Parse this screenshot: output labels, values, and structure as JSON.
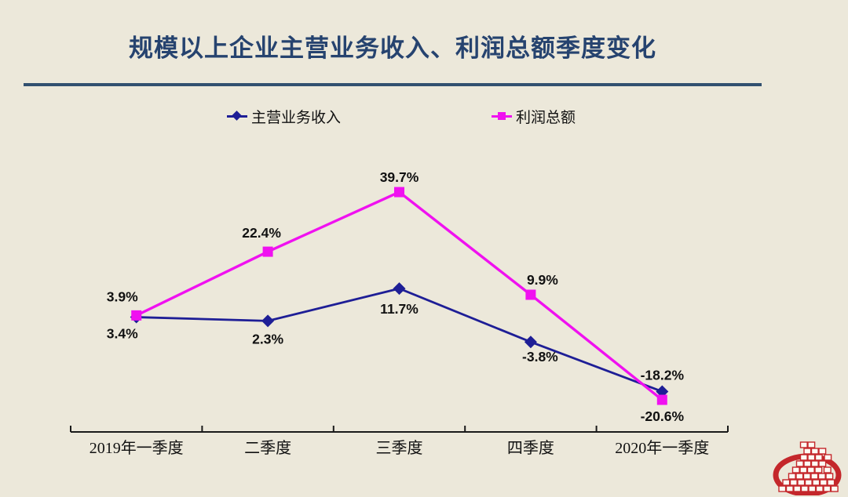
{
  "title": "规模以上企业主营业务收入、利润总额季度变化",
  "colors": {
    "background": "#ECE8DA",
    "title_color": "#26436F",
    "rule": "#31506F",
    "series_revenue": "#1E1E96",
    "series_profit": "#F011F0",
    "data_label": "#111111",
    "axis": "#1A1A1A",
    "logo_red": "#C4272B"
  },
  "legend": {
    "items": [
      {
        "label": "主营业务收入",
        "marker": "diamond"
      },
      {
        "label": "利润总额",
        "marker": "square"
      }
    ]
  },
  "chart_data": {
    "type": "line",
    "categories": [
      "2019年一季度",
      "二季度",
      "三季度",
      "四季度",
      "2020年一季度"
    ],
    "series": [
      {
        "name": "主营业务收入",
        "marker": "diamond",
        "color": "#1E1E96",
        "values": [
          3.4,
          2.3,
          11.7,
          -3.8,
          -18.2
        ],
        "labels": [
          "3.4%",
          "2.3%",
          "11.7%",
          "-3.8%",
          "-18.2%"
        ]
      },
      {
        "name": "利润总额",
        "marker": "square",
        "color": "#F011F0",
        "values": [
          3.9,
          22.4,
          39.7,
          9.9,
          -20.6
        ],
        "labels": [
          "3.9%",
          "22.4%",
          "39.7%",
          "9.9%",
          "-20.6%"
        ]
      }
    ],
    "unit": "%",
    "ylim": [
      -25,
      45
    ],
    "grid": false,
    "y_axis_visible": false,
    "legend_position": "top",
    "title": "规模以上企业主营业务收入、利润总额季度变化"
  },
  "logo": {
    "name": "National Bureau of Statistics logo"
  }
}
